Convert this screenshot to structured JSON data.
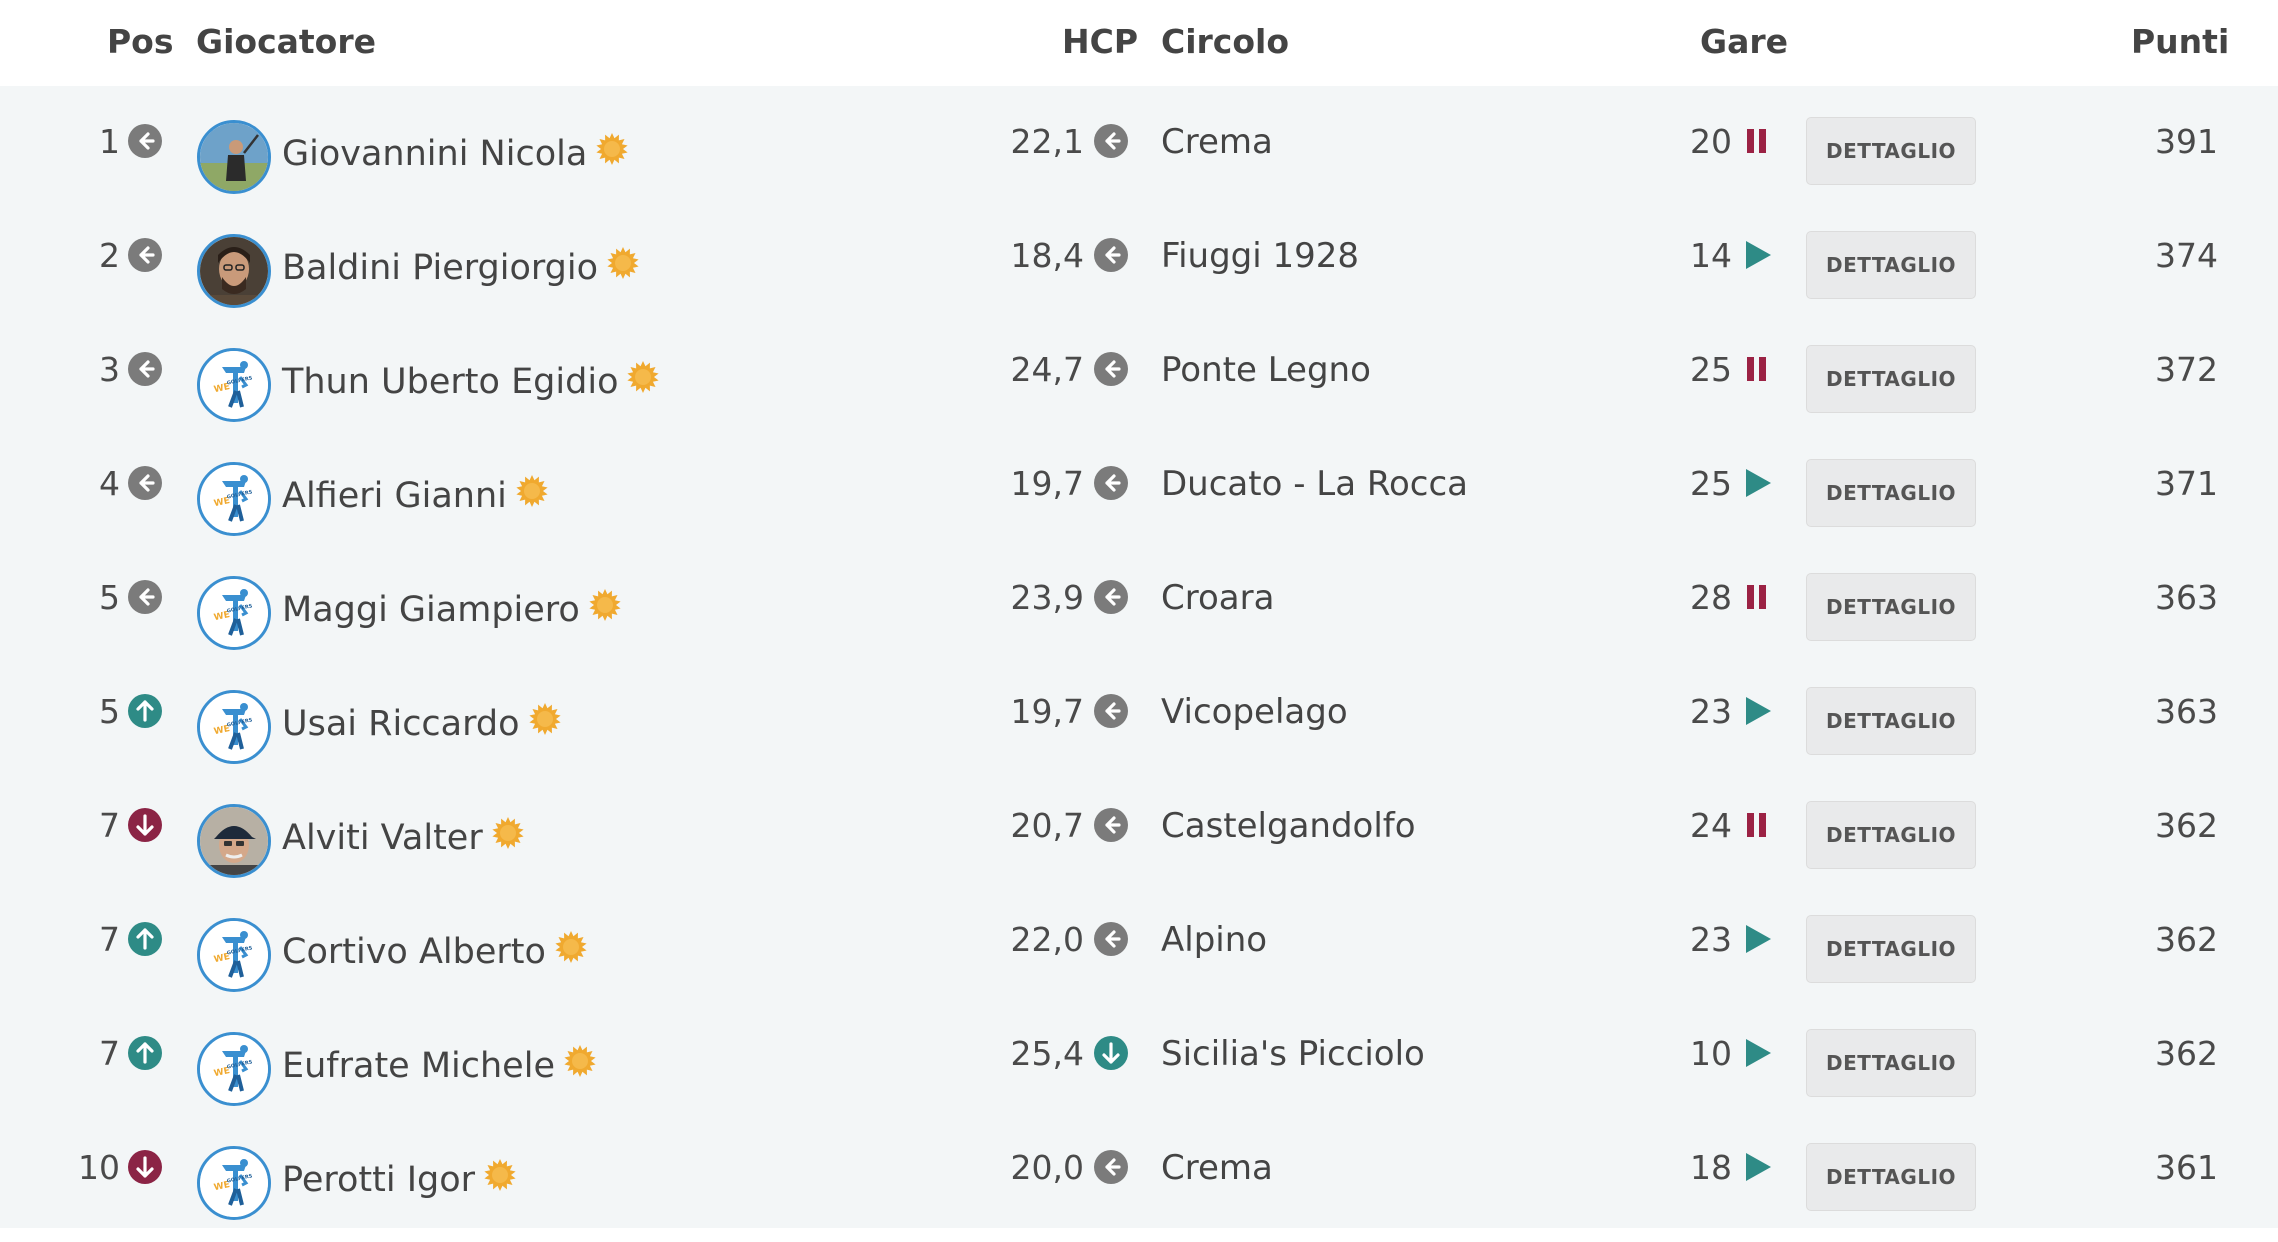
{
  "header": {
    "pos": "Pos",
    "player": "Giocatore",
    "hcp": "HCP",
    "club": "Circolo",
    "races": "Gare",
    "points": "Punti"
  },
  "colors": {
    "neutral": "#7b7b7b",
    "up": "#2e8b86",
    "down": "#8b2445",
    "star": "#f0a92f",
    "pause": "#9b2244",
    "play": "#2e8b86"
  },
  "rows": [
    {
      "pos": "1",
      "pos_trend": "neutral",
      "avatar": "photo-golfer",
      "name": "Giovannini Nicola",
      "hcp": "22,1",
      "hcp_trend": "neutral",
      "club": "Crema",
      "races": "20",
      "status": "pause",
      "button": "DETTAGLIO",
      "points": "391"
    },
    {
      "pos": "2",
      "pos_trend": "neutral",
      "avatar": "photo-man",
      "name": "Baldini Piergiorgio",
      "hcp": "18,4",
      "hcp_trend": "neutral",
      "club": "Fiuggi 1928",
      "races": "14",
      "status": "play",
      "button": "DETTAGLIO",
      "points": "374"
    },
    {
      "pos": "3",
      "pos_trend": "neutral",
      "avatar": "wegolfers-logo",
      "name": "Thun Uberto Egidio",
      "hcp": "24,7",
      "hcp_trend": "neutral",
      "club": "Ponte Legno",
      "races": "25",
      "status": "pause",
      "button": "DETTAGLIO",
      "points": "372"
    },
    {
      "pos": "4",
      "pos_trend": "neutral",
      "avatar": "wegolfers-logo",
      "name": "Alfieri Gianni",
      "hcp": "19,7",
      "hcp_trend": "neutral",
      "club": "Ducato - La Rocca",
      "races": "25",
      "status": "play",
      "button": "DETTAGLIO",
      "points": "371"
    },
    {
      "pos": "5",
      "pos_trend": "neutral",
      "avatar": "wegolfers-logo",
      "name": "Maggi Giampiero",
      "hcp": "23,9",
      "hcp_trend": "neutral",
      "club": "Croara",
      "races": "28",
      "status": "pause",
      "button": "DETTAGLIO",
      "points": "363"
    },
    {
      "pos": "5",
      "pos_trend": "up",
      "avatar": "wegolfers-logo",
      "name": "Usai Riccardo",
      "hcp": "19,7",
      "hcp_trend": "neutral",
      "club": "Vicopelago",
      "races": "23",
      "status": "play",
      "button": "DETTAGLIO",
      "points": "363"
    },
    {
      "pos": "7",
      "pos_trend": "down",
      "avatar": "photo-cap",
      "name": "Alviti Valter",
      "hcp": "20,7",
      "hcp_trend": "neutral",
      "club": "Castelgandolfo",
      "races": "24",
      "status": "pause",
      "button": "DETTAGLIO",
      "points": "362"
    },
    {
      "pos": "7",
      "pos_trend": "up",
      "avatar": "wegolfers-logo",
      "name": "Cortivo Alberto",
      "hcp": "22,0",
      "hcp_trend": "neutral",
      "club": "Alpino",
      "races": "23",
      "status": "play",
      "button": "DETTAGLIO",
      "points": "362"
    },
    {
      "pos": "7",
      "pos_trend": "up",
      "avatar": "wegolfers-logo",
      "name": "Eufrate Michele",
      "hcp": "25,4",
      "hcp_trend": "down-teal",
      "club": "Sicilia's Picciolo",
      "races": "10",
      "status": "play",
      "button": "DETTAGLIO",
      "points": "362"
    },
    {
      "pos": "10",
      "pos_trend": "down",
      "avatar": "wegolfers-logo",
      "name": "Perotti Igor",
      "hcp": "20,0",
      "hcp_trend": "neutral",
      "club": "Crema",
      "races": "18",
      "status": "play",
      "button": "DETTAGLIO",
      "points": "361"
    }
  ]
}
